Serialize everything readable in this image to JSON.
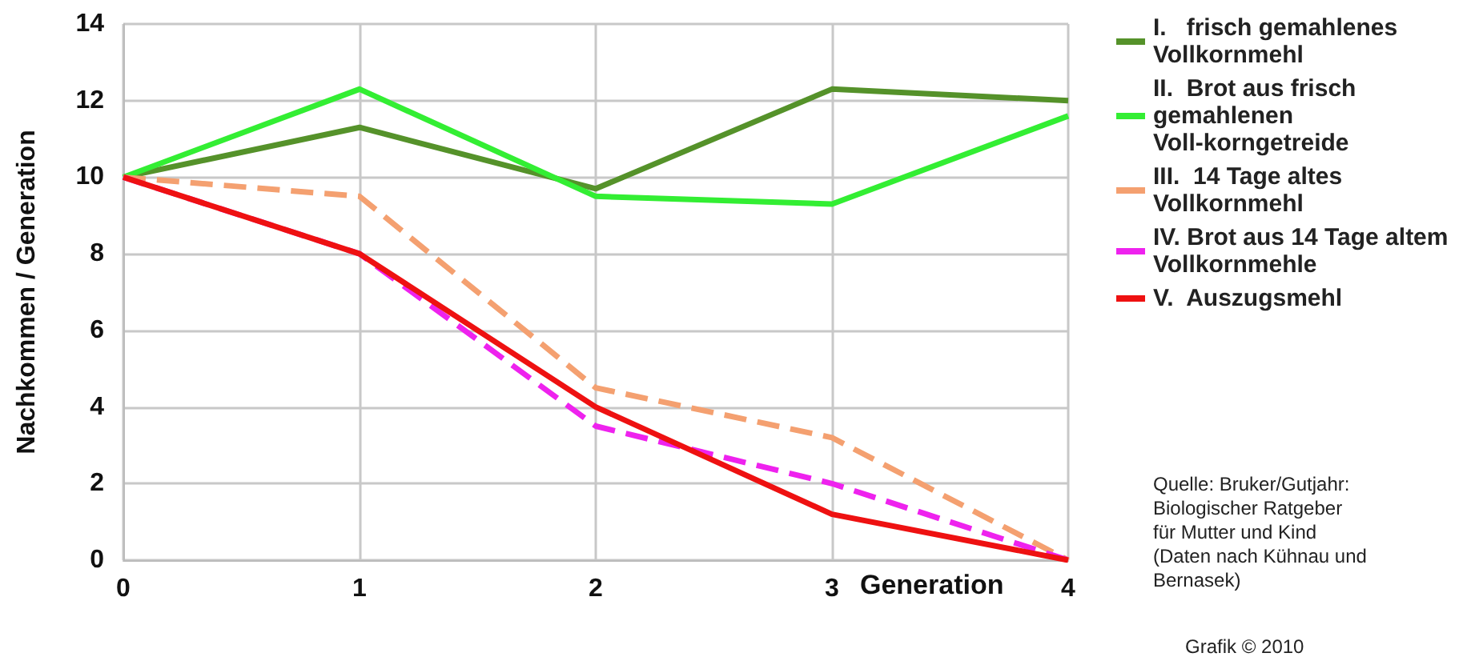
{
  "chart_data": {
    "type": "line",
    "xlabel": "Generation",
    "ylabel": "Nachkommen / Generation",
    "x": [
      0,
      1,
      2,
      3,
      4
    ],
    "xlim": [
      0,
      4
    ],
    "xticks": [
      0,
      1,
      2,
      3,
      4
    ],
    "ylim": [
      0,
      14
    ],
    "yticks": [
      0,
      2,
      4,
      6,
      8,
      10,
      12,
      14
    ],
    "grid": true,
    "legend": "right",
    "marker": "none",
    "series": [
      {
        "name": "I.   frisch gemahlenes Vollkornmehl",
        "color": "#55922a",
        "line_style": "solid",
        "values": [
          10,
          11.3,
          9.7,
          12.3,
          12
        ]
      },
      {
        "name": "II.  Brot aus frisch gemahlenen Voll-korngetreide",
        "color": "#33ee33",
        "line_style": "solid",
        "values": [
          10,
          12.3,
          9.5,
          9.3,
          11.6
        ]
      },
      {
        "name": "III.  14 Tage altes Vollkornmehl",
        "color": "#f4a070",
        "line_style": "dashed",
        "values": [
          10,
          9.5,
          4.5,
          3.2,
          0
        ]
      },
      {
        "name": "IV. Brot aus 14 Tage altem Vollkornmehle",
        "color": "#ee22ee",
        "line_style": "dashed",
        "values": [
          10,
          8,
          3.5,
          2,
          0
        ]
      },
      {
        "name": "V.  Auszugsmehl",
        "color": "#ee1111",
        "line_style": "solid",
        "values": [
          10,
          8,
          4,
          1.2,
          0
        ]
      }
    ],
    "annotations": [
      "Quelle: Bruker/Gutjahr: Biologischer Ratgeber für Mutter und Kind (Daten nach Kühnau und Bernasek)",
      "Grafik © 2010"
    ]
  }
}
